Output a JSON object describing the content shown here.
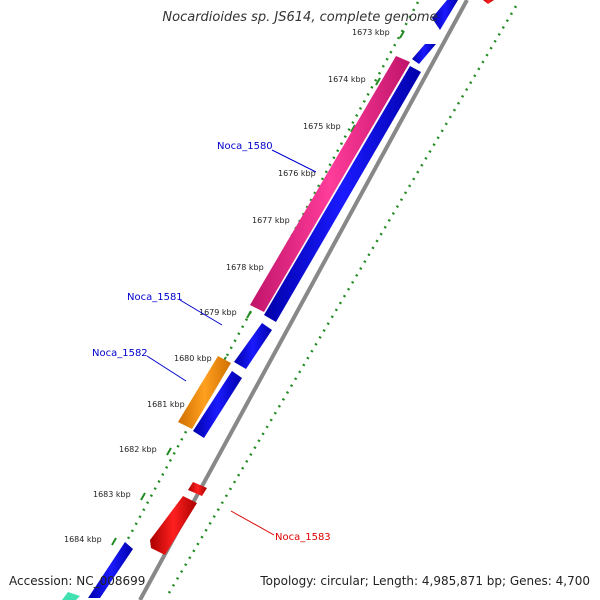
{
  "title": "Nocardioides sp. JS614, complete genome",
  "footer": {
    "accession": "Accession: NC_008699",
    "summary": "Topology: circular; Length: 4,985,871 bp; Genes: 4,700"
  },
  "ruler": {
    "unit": "kbp",
    "ticks": [
      "1673 kbp",
      "1674 kbp",
      "1675 kbp",
      "1676 kbp",
      "1677 kbp",
      "1678 kbp",
      "1679 kbp",
      "1680 kbp",
      "1681 kbp",
      "1682 kbp",
      "1683 kbp",
      "1684 kbp"
    ]
  },
  "genes": [
    {
      "name": "Noca_1580",
      "color": "#0000cc",
      "highlight": "#ee2e88",
      "strand": "+"
    },
    {
      "name": "Noca_1581",
      "color": "#0000cc",
      "strand": "+"
    },
    {
      "name": "Noca_1582",
      "color": "#0000cc",
      "highlight": "#ff8c00",
      "strand": "+"
    },
    {
      "name": "Noca_1583",
      "color": "#dd0000",
      "strand": "-"
    }
  ],
  "colors": {
    "cds_forward": "#0000ee",
    "cds_reverse": "#ee0000",
    "highlight_pink": "#ee2e88",
    "highlight_orange": "#ff8c00",
    "backbone": "#888888",
    "ruler_dots": "#228b22"
  }
}
